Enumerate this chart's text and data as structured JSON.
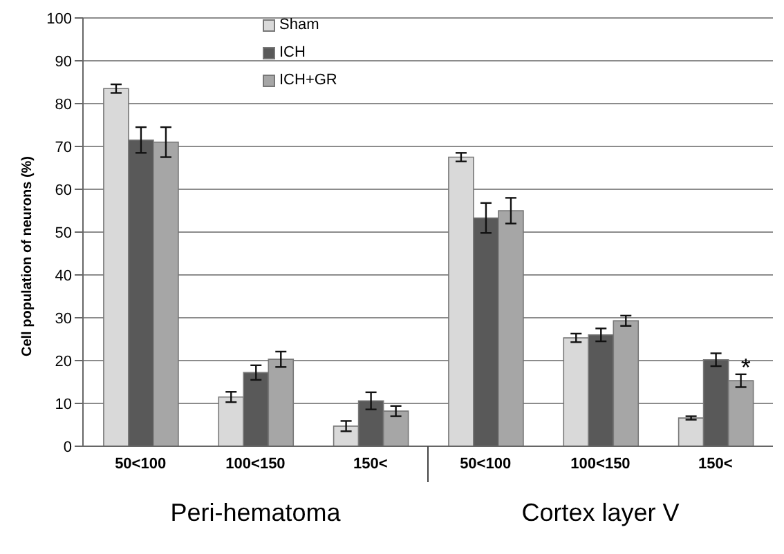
{
  "chart_data": {
    "type": "bar",
    "ylabel": "Cell population of neurons (%)",
    "categories": [
      "50<100",
      "100<150",
      "150<",
      "50<100",
      "100<150",
      "150<"
    ],
    "series": [
      {
        "name": "Sham",
        "color": "#d9d9d9",
        "values": [
          83.5,
          11.5,
          4.7,
          67.5,
          25.3,
          6.6
        ],
        "errors": [
          1,
          1.2,
          1.2,
          1,
          1,
          0.4
        ]
      },
      {
        "name": "ICH",
        "color": "#595959",
        "values": [
          71.5,
          17.2,
          10.6,
          53.3,
          26,
          20.2
        ],
        "errors": [
          3,
          1.7,
          2,
          3.5,
          1.5,
          1.5
        ]
      },
      {
        "name": "ICH+GR",
        "color": "#a6a6a6",
        "values": [
          71,
          20.3,
          8.2,
          55,
          29.3,
          15.3
        ],
        "errors": [
          3.5,
          1.8,
          1.2,
          3,
          1.2,
          1.5
        ]
      }
    ],
    "ylim": [
      0,
      100
    ],
    "yticks": [
      0,
      10,
      20,
      30,
      40,
      50,
      60,
      70,
      80,
      90,
      100
    ],
    "grid": "y",
    "legend": "top",
    "annotations": [
      "Peri-hematoma",
      "Cortex layer V",
      "*"
    ]
  }
}
